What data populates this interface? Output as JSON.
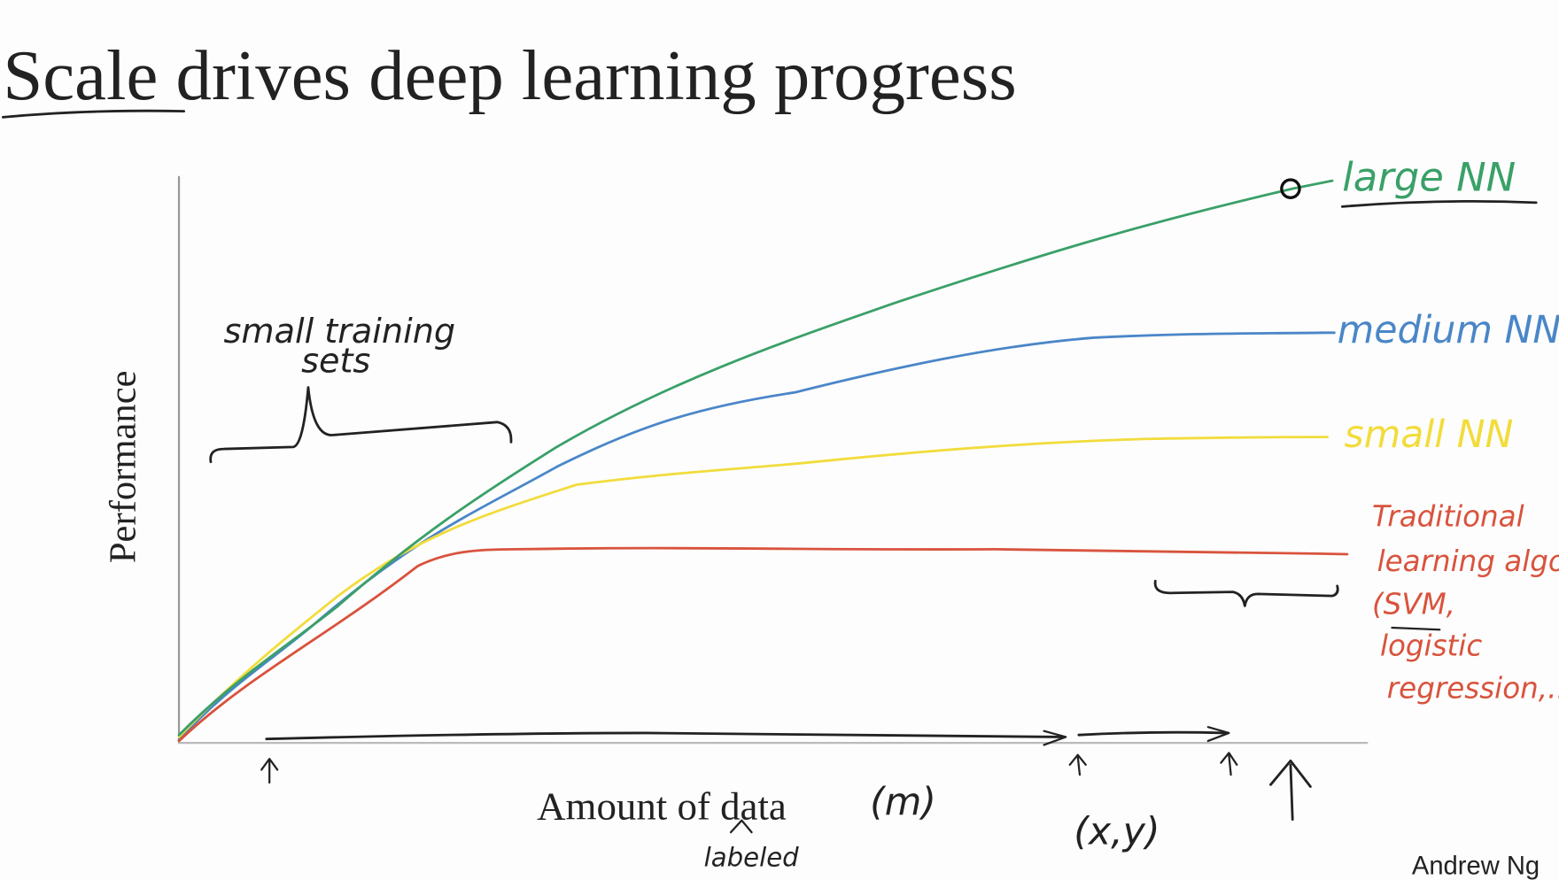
{
  "header": {
    "title": "Scale drives deep learning progress"
  },
  "axes": {
    "y_label": "Performance",
    "x_label": "Amount of data",
    "x_unit": "(m)",
    "x_note": "labeled"
  },
  "curves": {
    "large": "large NN",
    "medium": "medium NN",
    "small": "small NN",
    "traditional": [
      "Traditional",
      "learning algo",
      "(SVM,",
      "logistic",
      "regression,...)"
    ]
  },
  "annotations": {
    "small_sets": [
      "small training",
      "sets"
    ],
    "pair": "(x,y)"
  },
  "footer": {
    "author": "Andrew Ng"
  }
}
